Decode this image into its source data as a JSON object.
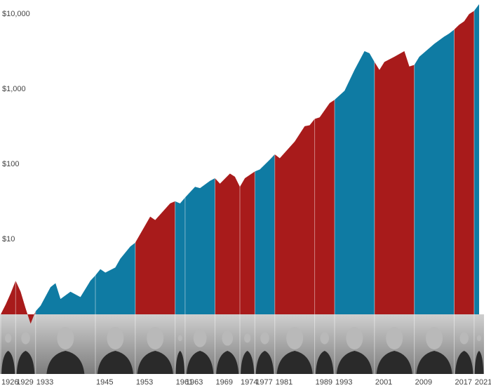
{
  "chart_data": {
    "type": "area",
    "log_scale": true,
    "x": [
      1926,
      1927,
      1928,
      1929,
      1930,
      1931,
      1932,
      1933,
      1934,
      1936,
      1937,
      1938,
      1940,
      1942,
      1944,
      1945,
      1946,
      1947,
      1949,
      1950,
      1952,
      1953,
      1956,
      1957,
      1960,
      1961,
      1962,
      1963,
      1965,
      1966,
      1968,
      1969,
      1970,
      1972,
      1973,
      1974,
      1975,
      1977,
      1978,
      1980,
      1981,
      1982,
      1985,
      1987,
      1988,
      1989,
      1990,
      1992,
      1993,
      1995,
      1997,
      1999,
      2000,
      2001,
      2002,
      2003,
      2005,
      2007,
      2008,
      2009,
      2010,
      2013,
      2015,
      2016,
      2017,
      2018,
      2019,
      2020,
      2021,
      2022
    ],
    "values": [
      1.0,
      1.35,
      1.9,
      2.8,
      2.0,
      1.2,
      0.75,
      1.1,
      1.3,
      2.3,
      2.6,
      1.6,
      2.0,
      1.7,
      2.8,
      3.3,
      4.0,
      3.6,
      4.2,
      5.5,
      8,
      9,
      20,
      18,
      30,
      32,
      30,
      36,
      50,
      48,
      60,
      65,
      55,
      75,
      68,
      50,
      65,
      80,
      85,
      115,
      135,
      120,
      200,
      320,
      330,
      400,
      420,
      650,
      720,
      950,
      1800,
      3200,
      3000,
      2300,
      1800,
      2300,
      2700,
      3200,
      2000,
      2100,
      2700,
      4000,
      5000,
      5500,
      6200,
      7200,
      8000,
      10000,
      11000,
      13500
    ],
    "xlim": [
      1926,
      2022.7
    ],
    "xticks": [
      1926,
      1929,
      1933,
      1945,
      1953,
      1961,
      1963,
      1969,
      1974,
      1977,
      1981,
      1989,
      1993,
      2001,
      2009,
      2017,
      2021
    ],
    "period_colors": [
      "#a81b1b",
      "#a81b1b",
      "#0f7ba3",
      "#0f7ba3",
      "#a81b1b",
      "#0f7ba3",
      "#0f7ba3",
      "#a81b1b",
      "#a81b1b",
      "#0f7ba3",
      "#a81b1b",
      "#a81b1b",
      "#0f7ba3",
      "#a81b1b",
      "#0f7ba3",
      "#a81b1b",
      "#0f7ba3"
    ],
    "ylim": [
      1,
      13800
    ],
    "yticks": [
      {
        "value": 10,
        "label": "$10"
      },
      {
        "value": 100,
        "label": "$100"
      },
      {
        "value": 1000,
        "label": "$1,000"
      },
      {
        "value": 10000,
        "label": "$10,000"
      }
    ]
  }
}
